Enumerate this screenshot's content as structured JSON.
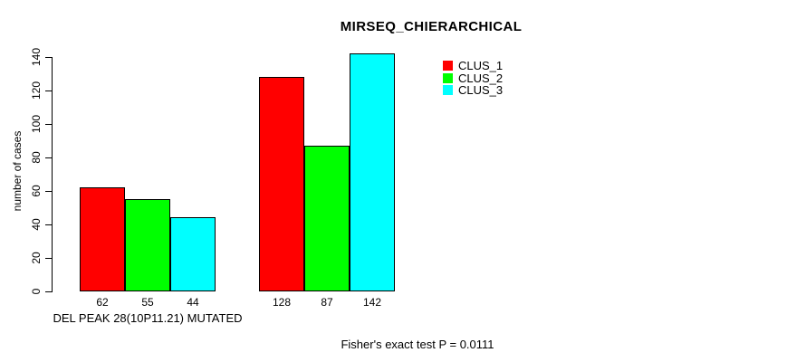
{
  "chart_data": {
    "type": "bar",
    "title": "MIRSEQ_CHIERARCHICAL",
    "ylabel": "number of cases",
    "xlabel": "",
    "ylim": [
      0,
      140
    ],
    "yticks": [
      0,
      20,
      40,
      60,
      80,
      100,
      120,
      140
    ],
    "grid": false,
    "legend_position": "top-right",
    "categories": [
      "DEL PEAK 28(10P11.21) MUTATED",
      ""
    ],
    "series": [
      {
        "name": "CLUS_1",
        "color": "#ff0000",
        "values": [
          62,
          128
        ]
      },
      {
        "name": "CLUS_2",
        "color": "#00ff00",
        "values": [
          55,
          87
        ]
      },
      {
        "name": "CLUS_3",
        "color": "#00ffff",
        "values": [
          44,
          142
        ]
      }
    ],
    "bar_value_labels": [
      [
        62,
        55,
        44
      ],
      [
        128,
        87,
        142
      ]
    ],
    "annotation": "Fisher's exact test P = 0.0111"
  },
  "colors": {
    "axis": "#000000",
    "text": "#000000",
    "background": "#ffffff"
  }
}
